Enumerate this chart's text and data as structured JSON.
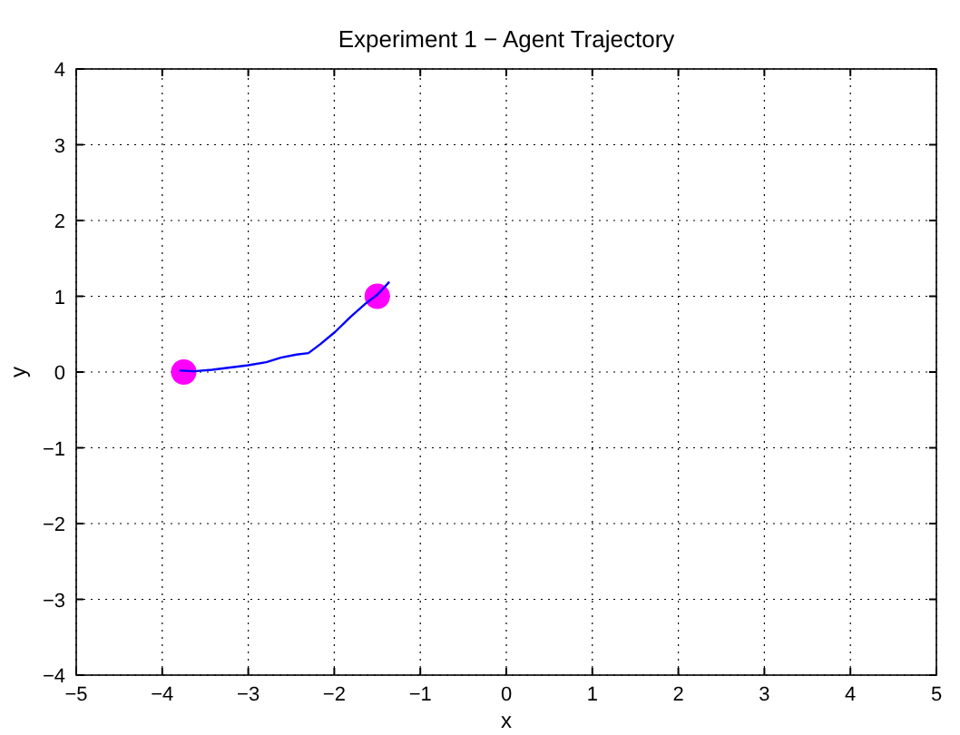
{
  "chart_data": {
    "type": "line",
    "title": "Experiment 1 − Agent Trajectory",
    "xlabel": "x",
    "ylabel": "y",
    "xlim": [
      -5,
      5
    ],
    "ylim": [
      -4,
      4
    ],
    "xticks": [
      -5,
      -4,
      -3,
      -2,
      -1,
      0,
      1,
      2,
      3,
      4,
      5
    ],
    "yticks": [
      -4,
      -3,
      -2,
      -1,
      0,
      1,
      2,
      3,
      4
    ],
    "grid": true,
    "series": [
      {
        "type": "line",
        "color": "#0000ff",
        "x": [
          -3.8,
          -3.63,
          -3.42,
          -3.21,
          -3.0,
          -2.79,
          -2.62,
          -2.44,
          -2.3,
          -2.16,
          -1.99,
          -1.81,
          -1.64,
          -1.5,
          -1.36
        ],
        "values": [
          0.02,
          0.01,
          0.03,
          0.06,
          0.09,
          0.13,
          0.19,
          0.23,
          0.25,
          0.37,
          0.53,
          0.73,
          0.9,
          1.02,
          1.19
        ]
      },
      {
        "type": "scatter",
        "color": "#ff00ff",
        "marker": "circle",
        "x": [
          -3.75,
          -1.5
        ],
        "values": [
          0,
          1
        ]
      }
    ]
  }
}
